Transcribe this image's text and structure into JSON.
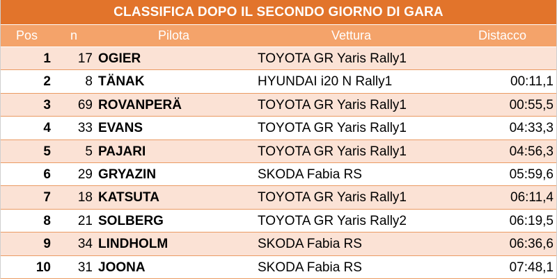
{
  "title": "CLASSIFICA DOPO IL SECONDO GIORNO DI GARA",
  "columns": {
    "pos": "Pos",
    "num": "n",
    "driver": "Pilota",
    "car": "Vettura",
    "gap": "Distacco"
  },
  "colors": {
    "title_bg": "#e2742b",
    "header_bg": "#f4a36a",
    "row_shade": "#fbe2d5",
    "row_border": "#ea9a62"
  },
  "rows": [
    {
      "pos": "1",
      "num": "17",
      "driver": "OGIER",
      "car": "TOYOTA GR Yaris Rally1",
      "gap": ""
    },
    {
      "pos": "2",
      "num": "8",
      "driver": "TÄNAK",
      "car": "HYUNDAI i20 N Rally1",
      "gap": "00:11,1"
    },
    {
      "pos": "3",
      "num": "69",
      "driver": "ROVANPERÄ",
      "car": "TOYOTA GR Yaris Rally1",
      "gap": "00:55,5"
    },
    {
      "pos": "4",
      "num": "33",
      "driver": "EVANS",
      "car": "TOYOTA GR Yaris Rally1",
      "gap": "04:33,3"
    },
    {
      "pos": "5",
      "num": "5",
      "driver": "PAJARI",
      "car": "TOYOTA GR Yaris Rally1",
      "gap": "04:56,3"
    },
    {
      "pos": "6",
      "num": "29",
      "driver": "GRYAZIN",
      "car": "SKODA Fabia RS",
      "gap": "05:59,6"
    },
    {
      "pos": "7",
      "num": "18",
      "driver": "KATSUTA",
      "car": "TOYOTA GR Yaris Rally1",
      "gap": "06:11,4"
    },
    {
      "pos": "8",
      "num": "21",
      "driver": "SOLBERG",
      "car": "TOYOTA GR Yaris Rally2",
      "gap": "06:19,5"
    },
    {
      "pos": "9",
      "num": "34",
      "driver": "LINDHOLM",
      "car": "SKODA Fabia RS",
      "gap": "06:36,6"
    },
    {
      "pos": "10",
      "num": "31",
      "driver": "JOONA",
      "car": "SKODA Fabia RS",
      "gap": "07:48,1"
    }
  ]
}
